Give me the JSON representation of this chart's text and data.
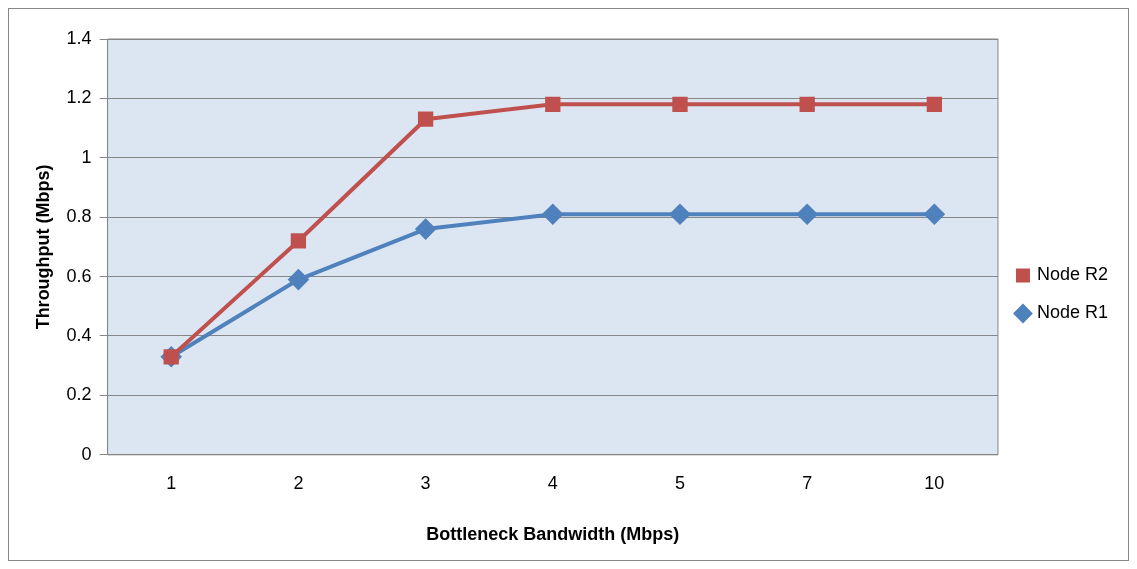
{
  "chart_data": {
    "type": "line",
    "xlabel": "Bottleneck Bandwidth (Mbps)",
    "ylabel": "Throughput (Mbps)",
    "categories": [
      "1",
      "2",
      "3",
      "4",
      "5",
      "7",
      "10"
    ],
    "series": [
      {
        "name": "Node R1",
        "color": "#4f81bd",
        "marker": "diamond",
        "values": [
          0.33,
          0.59,
          0.76,
          0.81,
          0.81,
          0.81,
          0.81
        ]
      },
      {
        "name": "Node R2",
        "color": "#c0504d",
        "marker": "square",
        "values": [
          0.33,
          0.72,
          1.13,
          1.18,
          1.18,
          1.18,
          1.18
        ]
      }
    ],
    "ylim": [
      0,
      1.4
    ],
    "yticks": [
      0,
      0.2,
      0.4,
      0.6,
      0.8,
      1,
      1.2,
      1.4
    ],
    "grid": "y",
    "legend": "right"
  }
}
